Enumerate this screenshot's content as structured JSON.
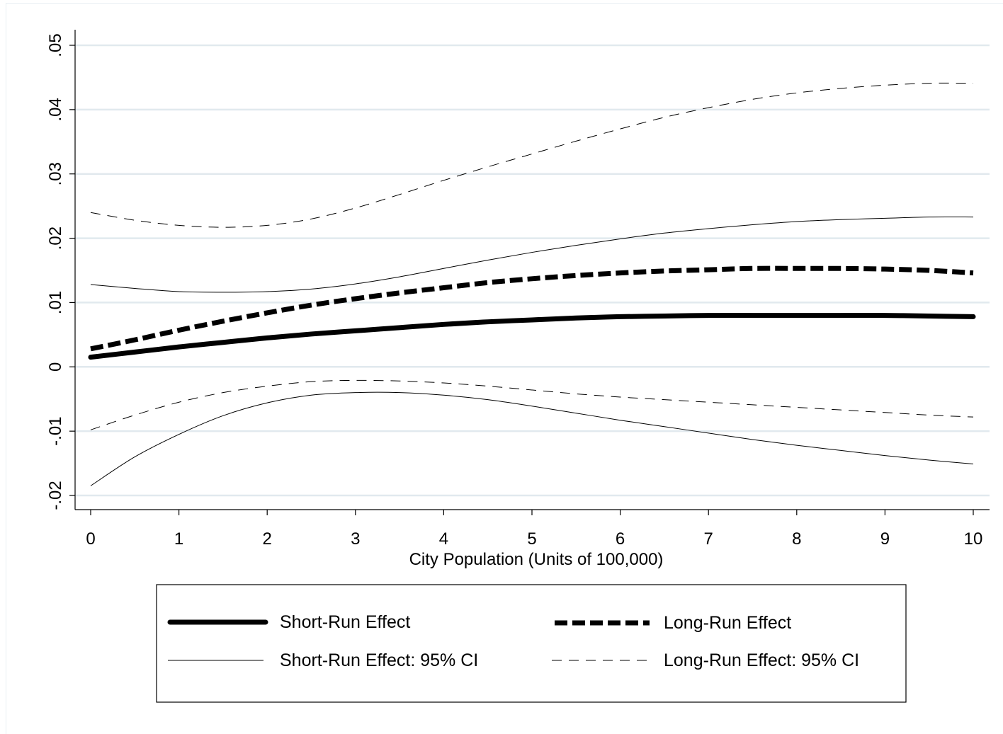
{
  "chart_data": {
    "type": "line",
    "title": "",
    "xlabel": "City Population (Units of 100,000)",
    "ylabel": "",
    "xlim": [
      0,
      10
    ],
    "ylim": [
      -0.02,
      0.05
    ],
    "x_ticks": [
      0,
      1,
      2,
      3,
      4,
      5,
      6,
      7,
      8,
      9,
      10
    ],
    "x_tick_labels": [
      "0",
      "1",
      "2",
      "3",
      "4",
      "5",
      "6",
      "7",
      "8",
      "9",
      "10"
    ],
    "y_ticks": [
      -0.02,
      -0.01,
      0,
      0.01,
      0.02,
      0.03,
      0.04,
      0.05
    ],
    "y_tick_labels": [
      "-.02",
      "-.01",
      "0",
      ".01",
      ".02",
      ".03",
      ".04",
      ".05"
    ],
    "grid": "horizontal",
    "legend_position": "bottom",
    "x": [
      0,
      0.5,
      1,
      1.5,
      2,
      2.5,
      3,
      3.5,
      4,
      4.5,
      5,
      5.5,
      6,
      6.5,
      7,
      7.5,
      8,
      8.5,
      9,
      9.5,
      10
    ],
    "series": [
      {
        "name": "Short-Run Effect",
        "style": "thick-solid",
        "color": "#000000",
        "values": [
          0.0015,
          0.0023,
          0.0031,
          0.0038,
          0.0045,
          0.0051,
          0.0056,
          0.0061,
          0.0066,
          0.007,
          0.0073,
          0.0076,
          0.0078,
          0.0079,
          0.008,
          0.008,
          0.008,
          0.008,
          0.008,
          0.0079,
          0.0078
        ]
      },
      {
        "name": "Long-Run Effect",
        "style": "thick-dash",
        "color": "#000000",
        "values": [
          0.0028,
          0.0042,
          0.0057,
          0.0071,
          0.0084,
          0.0096,
          0.0106,
          0.0115,
          0.0123,
          0.0131,
          0.0137,
          0.0142,
          0.0146,
          0.0149,
          0.0151,
          0.0153,
          0.0153,
          0.0153,
          0.0152,
          0.015,
          0.0146
        ]
      },
      {
        "name": "Short-Run Effect: 95% CI",
        "style": "thin-solid",
        "color": "#000000",
        "values": [
          0.0128,
          0.0122,
          0.0117,
          0.0116,
          0.0117,
          0.0121,
          0.0129,
          0.014,
          0.0153,
          0.0166,
          0.0178,
          0.0189,
          0.0199,
          0.0208,
          0.0215,
          0.0221,
          0.0226,
          0.0229,
          0.0231,
          0.0233,
          0.0233
        ]
      },
      {
        "name": "Short-Run Effect: 95% CI",
        "style": "thin-solid",
        "color": "#000000",
        "values": [
          -0.0185,
          -0.014,
          -0.0105,
          -0.0076,
          -0.0056,
          -0.0044,
          -0.004,
          -0.004,
          -0.0044,
          -0.0051,
          -0.0061,
          -0.0072,
          -0.0083,
          -0.0093,
          -0.0103,
          -0.0113,
          -0.0122,
          -0.013,
          -0.0138,
          -0.0145,
          -0.0151
        ]
      },
      {
        "name": "Long-Run Effect: 95% CI",
        "style": "thin-dash",
        "color": "#000000",
        "values": [
          0.024,
          0.0228,
          0.022,
          0.0217,
          0.022,
          0.023,
          0.0247,
          0.0268,
          0.029,
          0.0311,
          0.0331,
          0.0351,
          0.037,
          0.0388,
          0.0403,
          0.0416,
          0.0426,
          0.0433,
          0.0438,
          0.0441,
          0.0441
        ]
      },
      {
        "name": "Long-Run Effect: 95% CI",
        "style": "thin-dash",
        "color": "#000000",
        "values": [
          -0.0098,
          -0.0075,
          -0.0055,
          -0.004,
          -0.003,
          -0.0023,
          -0.0021,
          -0.0022,
          -0.0025,
          -0.003,
          -0.0036,
          -0.0042,
          -0.0047,
          -0.0051,
          -0.0055,
          -0.0059,
          -0.0063,
          -0.0067,
          -0.0071,
          -0.0075,
          -0.0078
        ]
      }
    ],
    "legend": [
      {
        "label": "Short-Run Effect",
        "style": "thick-solid"
      },
      {
        "label": "Long-Run Effect",
        "style": "thick-dash"
      },
      {
        "label": "Short-Run Effect: 95% CI",
        "style": "thin-solid"
      },
      {
        "label": "Long-Run Effect: 95% CI",
        "style": "thin-dash"
      }
    ],
    "gridline_color": "#e1e9ee"
  }
}
